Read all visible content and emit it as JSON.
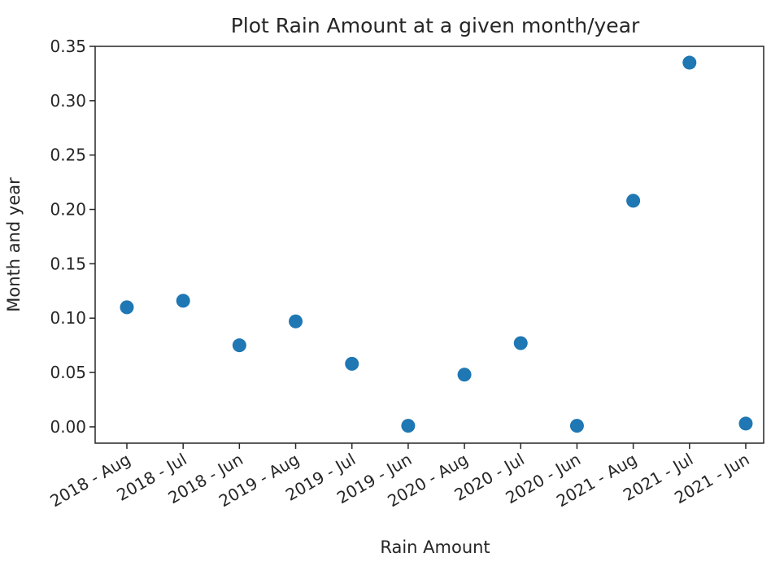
{
  "chart_data": {
    "type": "scatter",
    "title": "Plot Rain Amount at a given month/year",
    "xlabel": "Rain Amount",
    "ylabel": "Month and year",
    "categories": [
      "2018 - Aug",
      "2018 - Jul",
      "2018 - Jun",
      "2019 - Aug",
      "2019 - Jul",
      "2019 - Jun",
      "2020 - Aug",
      "2020 - Jul",
      "2020 - Jun",
      "2021 - Aug",
      "2021 - Jul",
      "2021 - Jun"
    ],
    "values": [
      0.11,
      0.116,
      0.075,
      0.097,
      0.058,
      0.001,
      0.048,
      0.077,
      0.001,
      0.208,
      0.335,
      0.003
    ],
    "ylim": [
      -0.015,
      0.35
    ],
    "yticks": [
      0.0,
      0.05,
      0.1,
      0.15,
      0.2,
      0.25,
      0.3,
      0.35
    ],
    "ytick_labels": [
      "0.00",
      "0.05",
      "0.10",
      "0.15",
      "0.20",
      "0.25",
      "0.30",
      "0.35"
    ],
    "grid": false,
    "colors": {
      "marker": "#1f77b4",
      "axis": "#262626"
    }
  }
}
